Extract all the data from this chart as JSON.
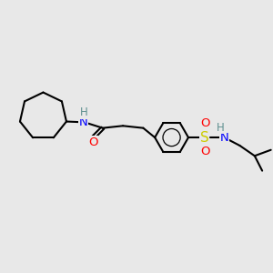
{
  "bg_color": "#e8e8e8",
  "bond_color": "#000000",
  "bond_width": 1.5,
  "atom_colors": {
    "N": "#0000ff",
    "O": "#ff0000",
    "S": "#cccc00",
    "H_label": "#5f9090",
    "C": "#000000"
  },
  "figsize": [
    3.0,
    3.0
  ],
  "dpi": 100,
  "xlim": [
    0,
    10
  ],
  "ylim": [
    0,
    10
  ]
}
